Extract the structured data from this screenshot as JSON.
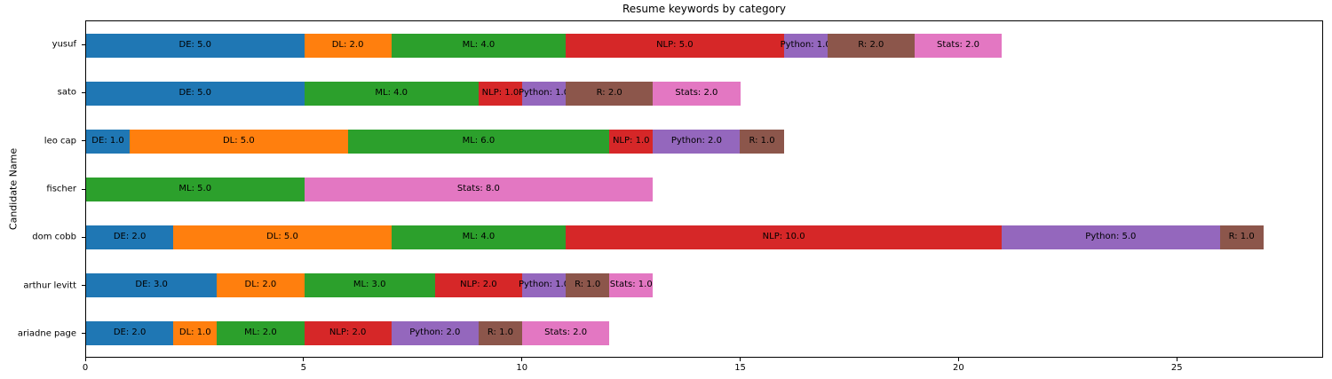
{
  "chart_data": {
    "type": "bar",
    "orientation": "horizontal",
    "stacked": true,
    "title": "Resume keywords by category",
    "xlabel": "",
    "ylabel": "Candidate Name",
    "xlim": [
      0,
      28.35
    ],
    "x_ticks": [
      0,
      5,
      10,
      15,
      20,
      25
    ],
    "grid": false,
    "legend": false,
    "bar_height_ratio": 0.5,
    "label_format": "{category}: {value_one_decimal}",
    "series_colors": {
      "DE": "#1f77b4",
      "DL": "#ff7f0e",
      "ML": "#2ca02c",
      "NLP": "#d62728",
      "Python": "#9467bd",
      "R": "#8c564b",
      "Stats": "#e377c2"
    },
    "rows": [
      {
        "name": "yusuf",
        "segments": [
          {
            "label": "DE",
            "value": 5.0
          },
          {
            "label": "DL",
            "value": 2.0
          },
          {
            "label": "ML",
            "value": 4.0
          },
          {
            "label": "NLP",
            "value": 5.0
          },
          {
            "label": "Python",
            "value": 1.0
          },
          {
            "label": "R",
            "value": 2.0
          },
          {
            "label": "Stats",
            "value": 2.0
          }
        ]
      },
      {
        "name": "sato",
        "segments": [
          {
            "label": "DE",
            "value": 5.0
          },
          {
            "label": "ML",
            "value": 4.0
          },
          {
            "label": "NLP",
            "value": 1.0
          },
          {
            "label": "Python",
            "value": 1.0
          },
          {
            "label": "R",
            "value": 2.0
          },
          {
            "label": "Stats",
            "value": 2.0
          }
        ]
      },
      {
        "name": "leo cap",
        "segments": [
          {
            "label": "DE",
            "value": 1.0
          },
          {
            "label": "DL",
            "value": 5.0
          },
          {
            "label": "ML",
            "value": 6.0
          },
          {
            "label": "NLP",
            "value": 1.0
          },
          {
            "label": "Python",
            "value": 2.0
          },
          {
            "label": "R",
            "value": 1.0
          }
        ]
      },
      {
        "name": "fischer",
        "segments": [
          {
            "label": "ML",
            "value": 5.0
          },
          {
            "label": "Stats",
            "value": 8.0
          }
        ]
      },
      {
        "name": "dom cobb",
        "segments": [
          {
            "label": "DE",
            "value": 2.0
          },
          {
            "label": "DL",
            "value": 5.0
          },
          {
            "label": "ML",
            "value": 4.0
          },
          {
            "label": "NLP",
            "value": 10.0
          },
          {
            "label": "Python",
            "value": 5.0
          },
          {
            "label": "R",
            "value": 1.0
          }
        ]
      },
      {
        "name": "arthur levitt",
        "segments": [
          {
            "label": "DE",
            "value": 3.0
          },
          {
            "label": "DL",
            "value": 2.0
          },
          {
            "label": "ML",
            "value": 3.0
          },
          {
            "label": "NLP",
            "value": 2.0
          },
          {
            "label": "Python",
            "value": 1.0
          },
          {
            "label": "R",
            "value": 1.0
          },
          {
            "label": "Stats",
            "value": 1.0
          }
        ]
      },
      {
        "name": "ariadne page",
        "segments": [
          {
            "label": "DE",
            "value": 2.0
          },
          {
            "label": "DL",
            "value": 1.0
          },
          {
            "label": "ML",
            "value": 2.0
          },
          {
            "label": "NLP",
            "value": 2.0
          },
          {
            "label": "Python",
            "value": 2.0
          },
          {
            "label": "R",
            "value": 1.0
          },
          {
            "label": "Stats",
            "value": 2.0
          }
        ]
      }
    ]
  }
}
